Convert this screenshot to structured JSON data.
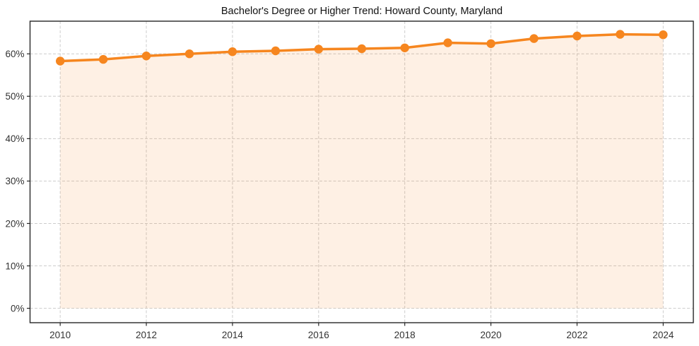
{
  "chart_data": {
    "type": "line",
    "title": "Bachelor's Degree or Higher Trend: Howard County, Maryland",
    "xlabel": "",
    "ylabel": "",
    "unit": "%",
    "x": [
      2010,
      2011,
      2012,
      2013,
      2014,
      2015,
      2016,
      2017,
      2018,
      2019,
      2020,
      2021,
      2022,
      2023,
      2024
    ],
    "series": [
      {
        "name": "Bachelor's Degree or Higher",
        "values": [
          58.3,
          58.7,
          59.5,
          60.0,
          60.5,
          60.7,
          61.1,
          61.2,
          61.4,
          62.6,
          62.4,
          63.6,
          64.2,
          64.6,
          64.5
        ]
      }
    ],
    "xticks": [
      2010,
      2012,
      2014,
      2016,
      2018,
      2020,
      2022,
      2024
    ],
    "yticks": [
      0,
      10,
      20,
      30,
      40,
      50,
      60
    ],
    "ytick_suffix": "%",
    "xlim": [
      2009.3,
      2024.7
    ],
    "ylim": [
      -3.4,
      67.7
    ],
    "grid": true,
    "grid_style": "dashed",
    "legend_position": "none",
    "marker": "circle",
    "area_fill_to_zero": true
  },
  "colors": {
    "line": "#f6861f",
    "marker": "#f6861f",
    "fill": "#f6861f",
    "fill_opacity": "0.12",
    "grid": "#cccccc",
    "axis": "#262626",
    "tick_label": "#333333",
    "title": "#111111",
    "background": "#ffffff"
  }
}
